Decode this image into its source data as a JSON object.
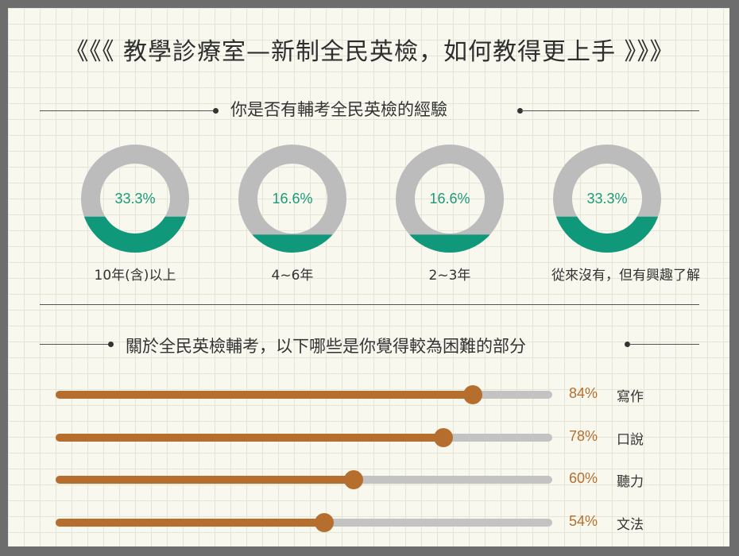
{
  "page": {
    "title": "《《《 教學診療室—新制全民英檢，如何教得更上手 》》》"
  },
  "section1": {
    "heading": "你是否有輔考全民英檢的經驗"
  },
  "section2": {
    "heading": "關於全民英檢輔考，以下哪些是你覺得較為困難的部分"
  },
  "colors": {
    "donut_track": "#bcbcbc",
    "donut_fill": "#0f987a",
    "bar_fill": "#b66e2e",
    "bar_track": "#c3c3c3"
  },
  "chart_data": [
    {
      "type": "pie",
      "subtype": "donut-row",
      "title": "你是否有輔考全民英檢的經驗",
      "categories": [
        "10年(含)以上",
        "4~6年",
        "2~3年",
        "從來沒有，但有興趣了解"
      ],
      "values": [
        33.3,
        16.6,
        16.6,
        33.3
      ],
      "value_labels": [
        "33.3%",
        "16.6%",
        "16.6%",
        "33.3%"
      ],
      "unit": "%"
    },
    {
      "type": "bar",
      "orientation": "horizontal",
      "title": "關於全民英檢輔考，以下哪些是你覺得較為困難的部分",
      "categories": [
        "寫作",
        "口說",
        "聽力",
        "文法"
      ],
      "values": [
        84,
        78,
        60,
        54
      ],
      "value_labels": [
        "84%",
        "78%",
        "60%",
        "54%"
      ],
      "unit": "%",
      "xlim": [
        0,
        100
      ]
    }
  ]
}
